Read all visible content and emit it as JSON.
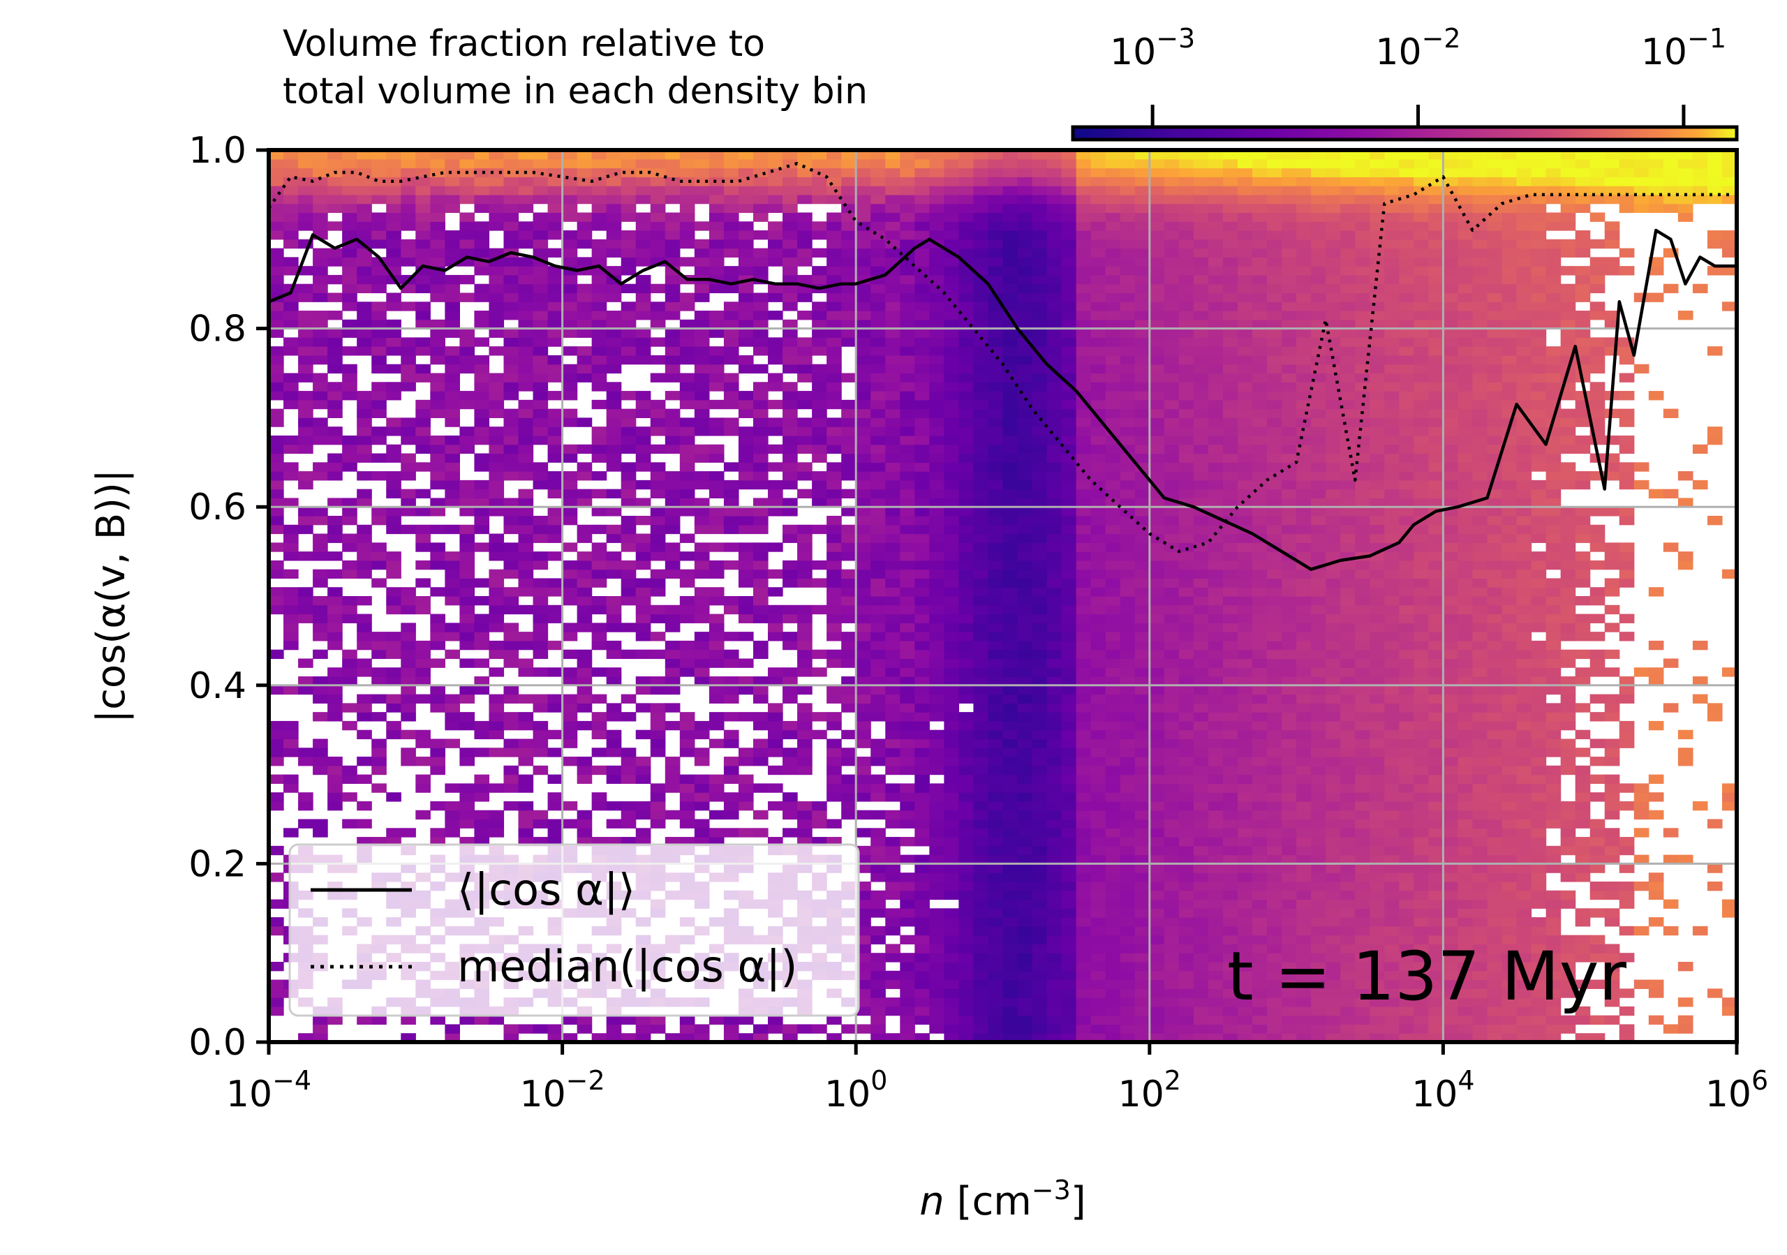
{
  "chart_data": {
    "type": "heatmap",
    "xscale": "log",
    "xlim_log10": [
      -4,
      6
    ],
    "ylim": [
      0,
      1
    ],
    "x_ticks": [
      {
        "base": "10",
        "exp": "−4"
      },
      {
        "base": "10",
        "exp": "−2"
      },
      {
        "base": "10",
        "exp": "0"
      },
      {
        "base": "10",
        "exp": "2"
      },
      {
        "base": "10",
        "exp": "4"
      },
      {
        "base": "10",
        "exp": "6"
      }
    ],
    "y_ticks": [
      "0.0",
      "0.2",
      "0.4",
      "0.6",
      "0.8",
      "1.0"
    ],
    "xlabel": {
      "var": "n",
      "unit_open": " [cm",
      "unit_exp": "−3",
      "unit_close": "]"
    },
    "ylabel": "|cos(α(v, B))|",
    "grid": true,
    "colormap": "plasma",
    "colorbar": {
      "title_line1": "Volume fraction relative to",
      "title_line2": "total volume in each density bin",
      "scale": "log",
      "range_log10": [
        -3.3,
        -0.8
      ],
      "ticks": [
        {
          "base": "10",
          "exp": "−3"
        },
        {
          "base": "10",
          "exp": "−2"
        },
        {
          "base": "10",
          "exp": "−1"
        }
      ],
      "placement": "top-right"
    },
    "legend": {
      "placement": "bottom-left",
      "entries": [
        {
          "label": "⟨|cos α|⟩",
          "style": "solid"
        },
        {
          "label": "median(|cos α|)",
          "style": "dotted"
        }
      ]
    },
    "annotation": "t = 137 Myr",
    "series": [
      {
        "style": "solid",
        "x_log10": [
          -4.0,
          -3.85,
          -3.7,
          -3.55,
          -3.4,
          -3.25,
          -3.1,
          -2.95,
          -2.8,
          -2.65,
          -2.5,
          -2.35,
          -2.2,
          -2.05,
          -1.9,
          -1.75,
          -1.6,
          -1.45,
          -1.3,
          -1.15,
          -1.0,
          -0.85,
          -0.7,
          -0.55,
          -0.4,
          -0.25,
          -0.1,
          0.0,
          0.2,
          0.4,
          0.5,
          0.7,
          0.9,
          1.1,
          1.3,
          1.5,
          1.7,
          1.9,
          2.1,
          2.3,
          2.5,
          2.7,
          2.9,
          3.1,
          3.3,
          3.5,
          3.7,
          3.8,
          3.95,
          4.1,
          4.3,
          4.5,
          4.7,
          4.9,
          5.1,
          5.2,
          5.3,
          5.45,
          5.55,
          5.65,
          5.75,
          5.85,
          5.95,
          6.0
        ],
        "y": [
          0.83,
          0.84,
          0.905,
          0.89,
          0.9,
          0.88,
          0.845,
          0.87,
          0.865,
          0.88,
          0.875,
          0.885,
          0.88,
          0.87,
          0.865,
          0.87,
          0.85,
          0.865,
          0.875,
          0.855,
          0.855,
          0.85,
          0.855,
          0.85,
          0.85,
          0.845,
          0.85,
          0.85,
          0.86,
          0.89,
          0.9,
          0.88,
          0.85,
          0.8,
          0.76,
          0.73,
          0.69,
          0.65,
          0.61,
          0.6,
          0.585,
          0.57,
          0.55,
          0.53,
          0.54,
          0.545,
          0.56,
          0.58,
          0.595,
          0.6,
          0.61,
          0.715,
          0.67,
          0.78,
          0.62,
          0.83,
          0.77,
          0.91,
          0.9,
          0.85,
          0.88,
          0.87,
          0.87,
          0.87
        ]
      },
      {
        "style": "dotted",
        "x_log10": [
          -4.0,
          -3.85,
          -3.7,
          -3.55,
          -3.4,
          -3.25,
          -3.1,
          -2.95,
          -2.8,
          -2.6,
          -2.4,
          -2.2,
          -2.0,
          -1.8,
          -1.6,
          -1.4,
          -1.2,
          -1.0,
          -0.8,
          -0.6,
          -0.4,
          -0.2,
          0.0,
          0.2,
          0.4,
          0.6,
          0.8,
          1.0,
          1.2,
          1.4,
          1.6,
          1.8,
          2.0,
          2.2,
          2.4,
          2.6,
          2.8,
          3.0,
          3.2,
          3.4,
          3.6,
          3.8,
          4.0,
          4.2,
          4.4,
          4.6,
          4.8,
          5.0,
          5.1,
          5.25,
          5.4,
          5.55,
          5.7,
          5.85,
          6.0
        ],
        "y": [
          0.935,
          0.97,
          0.965,
          0.975,
          0.975,
          0.965,
          0.965,
          0.97,
          0.975,
          0.975,
          0.975,
          0.975,
          0.97,
          0.965,
          0.975,
          0.975,
          0.965,
          0.965,
          0.965,
          0.975,
          0.985,
          0.97,
          0.92,
          0.9,
          0.87,
          0.84,
          0.8,
          0.76,
          0.71,
          0.67,
          0.63,
          0.6,
          0.57,
          0.55,
          0.56,
          0.6,
          0.63,
          0.65,
          0.81,
          0.63,
          0.94,
          0.95,
          0.97,
          0.91,
          0.94,
          0.95,
          0.95,
          0.95,
          0.95,
          0.95,
          0.95,
          0.95,
          0.95,
          0.95,
          0.95
        ]
      }
    ]
  }
}
